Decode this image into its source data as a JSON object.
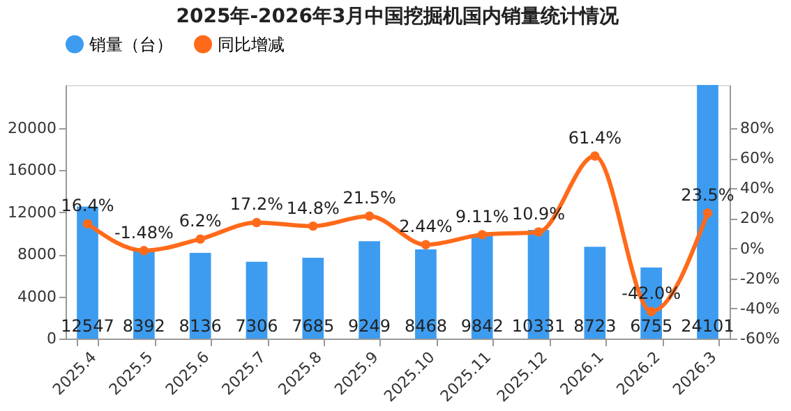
{
  "chart_data": {
    "type": "bar",
    "title": "2025年-2026年3月中国挖掘机国内销量统计情况",
    "categories": [
      "2025.4",
      "2025.5",
      "2025.6",
      "2025.7",
      "2025.8",
      "2025.9",
      "2025.10",
      "2025.11",
      "2025.12",
      "2026.1",
      "2026.2",
      "2026.3"
    ],
    "series": [
      {
        "name": "销量（台）",
        "color": "#3d9cf0",
        "values": [
          12547,
          8392,
          8136,
          7306,
          7685,
          9249,
          8468,
          9842,
          10331,
          8723,
          6755,
          24101
        ],
        "value_labels": [
          "12547",
          "8392",
          "8136",
          "7306",
          "7685",
          "9249",
          "8468",
          "9842",
          "10331",
          "8723",
          "6755",
          "24101"
        ]
      },
      {
        "name": "同比增减",
        "type": "line",
        "axis": "y2",
        "color": "#ff6a1a",
        "values": [
          16.4,
          -1.48,
          6.2,
          17.2,
          14.8,
          21.5,
          2.44,
          9.11,
          10.9,
          61.4,
          -42.0,
          23.5
        ],
        "value_labels": [
          "16.4%",
          "-1.48%",
          "6.2%",
          "17.2%",
          "14.8%",
          "21.5%",
          "2.44%",
          "9.11%",
          "10.9%",
          "61.4%",
          "-42.0%",
          "23.5%"
        ]
      }
    ],
    "ylim": [
      0,
      24101
    ],
    "yticks": [
      0,
      4000,
      8000,
      12000,
      16000,
      20000
    ],
    "y2lim": [
      -60,
      108.7
    ],
    "y2ticks": [
      {
        "value": -60,
        "label": "-60%"
      },
      {
        "value": -40,
        "label": "-40%"
      },
      {
        "value": -20,
        "label": "-20%"
      },
      {
        "value": 0,
        "label": "0%"
      },
      {
        "value": 20,
        "label": "20%"
      },
      {
        "value": 40,
        "label": "40%"
      },
      {
        "value": 60,
        "label": "60%"
      },
      {
        "value": 80,
        "label": "80%"
      }
    ],
    "marker": "circle",
    "grid": false,
    "legend": "top"
  }
}
